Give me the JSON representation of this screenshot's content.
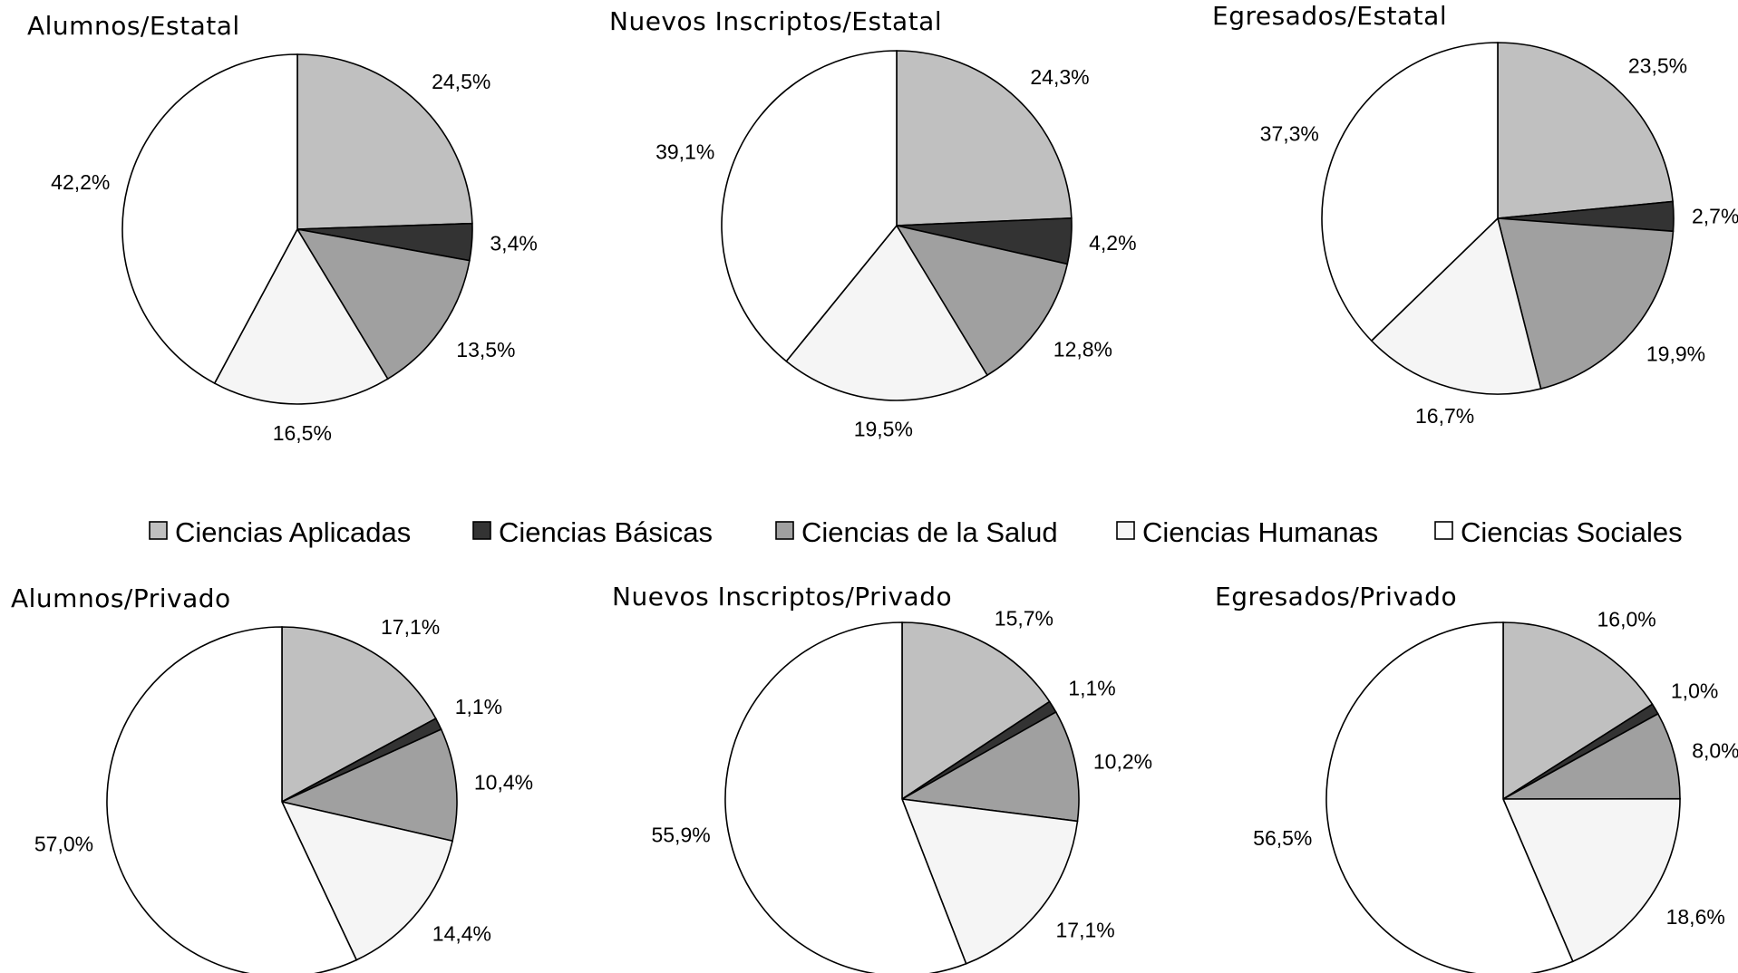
{
  "legend": [
    {
      "label": "Ciencias Aplicadas",
      "color": "#c0c0c0"
    },
    {
      "label": "Ciencias Básicas",
      "color": "#333333"
    },
    {
      "label": "Ciencias de la Salud",
      "color": "#a0a0a0"
    },
    {
      "label": "Ciencias Humanas",
      "color": "#f5f5f5"
    },
    {
      "label": "Ciencias Sociales",
      "color": "#ffffff"
    }
  ],
  "chart_data": [
    {
      "type": "pie",
      "title": "Alumnos/Estatal",
      "labels": [
        "24,5%",
        "3,4%",
        "13,5%",
        "16,5%",
        "42,2%"
      ],
      "values": [
        24.5,
        3.4,
        13.5,
        16.5,
        42.2
      ]
    },
    {
      "type": "pie",
      "title": "Nuevos Inscriptos/Estatal",
      "labels": [
        "24,3%",
        "4,2%",
        "12,8%",
        "19,5%",
        "39,1%"
      ],
      "values": [
        24.3,
        4.2,
        12.8,
        19.5,
        39.1
      ]
    },
    {
      "type": "pie",
      "title": "Egresados/Estatal",
      "labels": [
        "23,5%",
        "2,7%",
        "19,9%",
        "16,7%",
        "37,3%"
      ],
      "values": [
        23.5,
        2.7,
        19.9,
        16.7,
        37.3
      ]
    },
    {
      "type": "pie",
      "title": "Alumnos/Privado",
      "labels": [
        "17,1%",
        "1,1%",
        "10,4%",
        "14,4%",
        "57,0%"
      ],
      "values": [
        17.1,
        1.1,
        10.4,
        14.4,
        57.0
      ]
    },
    {
      "type": "pie",
      "title": "Nuevos Inscriptos/Privado",
      "labels": [
        "15,7%",
        "1,1%",
        "10,2%",
        "17,1%",
        "55,9%"
      ],
      "values": [
        15.7,
        1.1,
        10.2,
        17.1,
        55.9
      ]
    },
    {
      "type": "pie",
      "title": "Egresados/Privado",
      "labels": [
        "16,0%",
        "1,0%",
        "8,0%",
        "18,6%",
        "56,5%"
      ],
      "values": [
        16.0,
        1.0,
        8.0,
        18.6,
        56.5
      ]
    }
  ]
}
